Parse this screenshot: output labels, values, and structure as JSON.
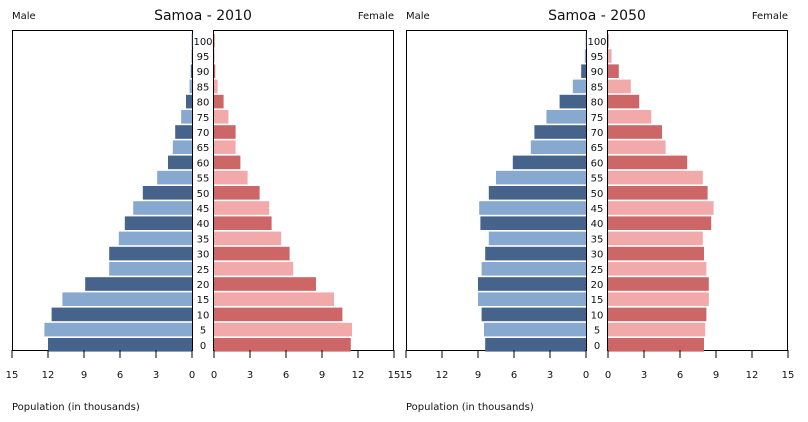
{
  "chart_data": [
    {
      "type": "bar",
      "title": "Samoa - 2010",
      "left_label": "Male",
      "right_label": "Female",
      "xlabel": "Population (in thousands)",
      "xlim": [
        0,
        15
      ],
      "ticks": [
        15,
        12,
        9,
        6,
        3,
        0
      ],
      "right_ticks": [
        0,
        3,
        6,
        9,
        12,
        15
      ],
      "categories": [
        "0",
        "5",
        "10",
        "15",
        "20",
        "25",
        "30",
        "35",
        "40",
        "45",
        "50",
        "55",
        "60",
        "65",
        "70",
        "75",
        "80",
        "85",
        "90",
        "95",
        "100"
      ],
      "series": [
        {
          "name": "Male",
          "values": [
            12.0,
            12.3,
            11.7,
            10.8,
            8.9,
            6.9,
            6.9,
            6.1,
            5.6,
            4.9,
            4.1,
            2.9,
            2.0,
            1.6,
            1.4,
            0.9,
            0.5,
            0.2,
            0.1,
            0.05,
            0.02
          ]
        },
        {
          "name": "Female",
          "values": [
            11.4,
            11.5,
            10.7,
            10.0,
            8.5,
            6.6,
            6.3,
            5.6,
            4.8,
            4.6,
            3.8,
            2.8,
            2.2,
            1.8,
            1.8,
            1.2,
            0.8,
            0.3,
            0.1,
            0.05,
            0.02
          ]
        }
      ]
    },
    {
      "type": "bar",
      "title": "Samoa - 2050",
      "left_label": "Male",
      "right_label": "Female",
      "xlabel": "Population (in thousands)",
      "xlim": [
        0,
        15
      ],
      "ticks": [
        15,
        12,
        9,
        6,
        3,
        0
      ],
      "right_ticks": [
        0,
        3,
        6,
        9,
        12,
        15
      ],
      "categories": [
        "0",
        "5",
        "10",
        "15",
        "20",
        "25",
        "30",
        "35",
        "40",
        "45",
        "50",
        "55",
        "60",
        "65",
        "70",
        "75",
        "80",
        "85",
        "90",
        "95",
        "100"
      ],
      "series": [
        {
          "name": "Male",
          "values": [
            8.4,
            8.5,
            8.7,
            9.0,
            9.0,
            8.7,
            8.4,
            8.1,
            8.8,
            8.9,
            8.1,
            7.5,
            6.1,
            4.6,
            4.3,
            3.3,
            2.2,
            1.1,
            0.4,
            0.1,
            0.02
          ]
        },
        {
          "name": "Female",
          "values": [
            8.0,
            8.1,
            8.2,
            8.4,
            8.4,
            8.2,
            8.0,
            7.9,
            8.6,
            8.8,
            8.3,
            7.9,
            6.6,
            4.8,
            4.5,
            3.6,
            2.6,
            1.9,
            0.9,
            0.3,
            0.05
          ]
        }
      ]
    }
  ],
  "colors": {
    "male_dark": "#46638c",
    "male_light": "#87a8cf",
    "female_dark": "#cc6667",
    "female_light": "#f1a9a9",
    "frame": "#000000",
    "text": "#111111"
  }
}
